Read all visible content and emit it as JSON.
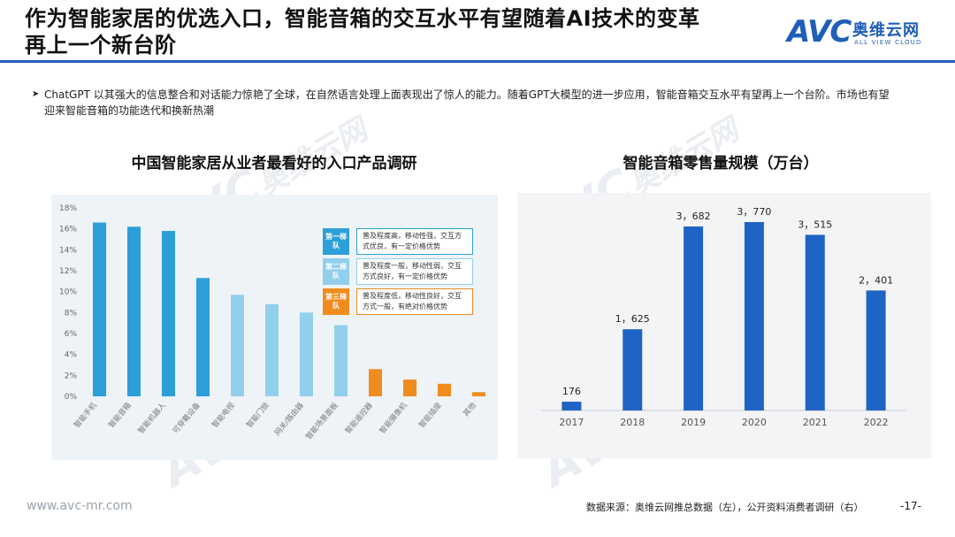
{
  "header": {
    "title_line1": "作为智能家居的优选入口，智能音箱的交互水平有望随着AI技术的变革",
    "title_line2": "再上一个新台阶"
  },
  "logo": {
    "mark": "AVC",
    "cn": "奥维云网",
    "en": "ALL VIEW CLOUD",
    "color": "#1f5fb8"
  },
  "bullet": {
    "marker": "➤",
    "text": "ChatGPT 以其强大的信息整合和对话能力惊艳了全球，在自然语言处理上面表现出了惊人的能力。随着GPT大模型的进一步应用，智能音箱交互水平有望再上一个台阶。市场也有望迎来智能音箱的功能迭代和换新热潮"
  },
  "watermark": {
    "mark": "AVC",
    "cn": "奥维云网",
    "en": "ALL VIEW CLOUD"
  },
  "chart_data": [
    {
      "type": "bar",
      "title": "中国智能家居从业者最看好的入口产品调研",
      "categories": [
        "智能手机",
        "智能音箱",
        "智能机器人",
        "可穿戴设备",
        "智能电视",
        "智能门锁",
        "网关/路由器",
        "智能场景面板",
        "智能遥控器",
        "智能摄像机",
        "智能插座",
        "其他"
      ],
      "values": [
        16.6,
        16.2,
        15.8,
        11.3,
        9.7,
        8.8,
        8.0,
        6.8,
        2.6,
        1.6,
        1.2,
        0.4
      ],
      "tiers": [
        1,
        1,
        1,
        1,
        2,
        2,
        2,
        2,
        3,
        3,
        3,
        3
      ],
      "ylim": [
        0,
        18
      ],
      "yticks": [
        "0%",
        "2%",
        "4%",
        "6%",
        "8%",
        "10%",
        "12%",
        "14%",
        "16%",
        "18%"
      ],
      "grid": false,
      "colors": {
        "tier1": "#2d9fd8",
        "tier2": "#92cfec",
        "tier3": "#f08c1e"
      },
      "legend": [
        {
          "tag": "第一梯队",
          "text": "普及程度高，移动性强，交互方式优良，有一定价格优势",
          "color": "#2d9fd8"
        },
        {
          "tag": "第二梯队",
          "text": "普及程度一般，移动性弱，交互方式良好，有一定价格优势",
          "color": "#92cfec"
        },
        {
          "tag": "第三梯队",
          "text": "普及程度低，移动性良好，交互方式一般，有绝对价格优势",
          "color": "#f08c1e"
        }
      ]
    },
    {
      "type": "bar",
      "title": "智能音箱零售量规模（万台）",
      "categories": [
        "2017",
        "2018",
        "2019",
        "2020",
        "2021",
        "2022"
      ],
      "values": [
        176,
        1625,
        3682,
        3770,
        3515,
        2401
      ],
      "labels": [
        "176",
        "1，625",
        "3，682",
        "3，770",
        "3，515",
        "2，401"
      ],
      "ylim": [
        0,
        4000
      ],
      "grid": false,
      "color": "#1f64c4"
    }
  ],
  "footer": {
    "url": "www.avc-mr.com",
    "source": "数据来源：奥维云网推总数据（左），公开资料消费者调研（右）",
    "page": "-17-"
  }
}
